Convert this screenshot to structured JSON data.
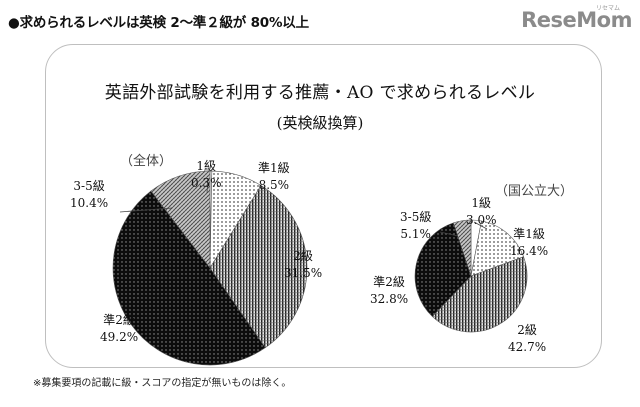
{
  "heading": "●求められるレベルは英検 2〜準２級が 80%以上",
  "logo": {
    "main": "ReseMom",
    "sub": "リセマム"
  },
  "footnote": "※募集要項の記載に級・スコアの指定が無いものは除く。",
  "chart_data": [
    {
      "type": "pie",
      "title": "英語外部試験を利用する推薦・AO で求められるレベル",
      "subtitle": "(英検級換算)",
      "chart_label": "（全体）",
      "slices": [
        {
          "label": "1級",
          "value": 0.3,
          "display": "0.3%"
        },
        {
          "label": "準1級",
          "value": 8.5,
          "display": "8.5%"
        },
        {
          "label": "2級",
          "value": 31.5,
          "display": "31.5%"
        },
        {
          "label": "準2級",
          "value": 49.2,
          "display": "49.2%"
        },
        {
          "label": "3-5級",
          "value": 10.4,
          "display": "10.4%"
        }
      ]
    },
    {
      "type": "pie",
      "chart_label": "（国公立大）",
      "slices": [
        {
          "label": "1級",
          "value": 3.0,
          "display": "3.0%"
        },
        {
          "label": "準1級",
          "value": 16.4,
          "display": "16.4%"
        },
        {
          "label": "2級",
          "value": 42.7,
          "display": "42.7%"
        },
        {
          "label": "準2級",
          "value": 32.8,
          "display": "32.8%"
        },
        {
          "label": "3-5級",
          "value": 5.1,
          "display": "5.1%"
        }
      ]
    }
  ]
}
